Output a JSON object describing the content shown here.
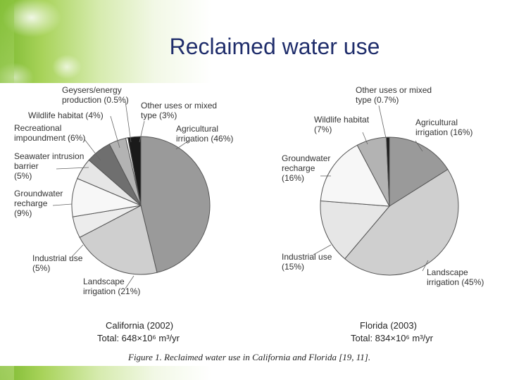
{
  "slide": {
    "title": "Reclaimed water use"
  },
  "figure_caption": "Figure 1.  Reclaimed water use in California and Florida [19, 11].",
  "chart_data": [
    {
      "type": "pie",
      "caption": "California (2002)",
      "total": "Total: 648×10⁶ m³/yr",
      "slices": [
        {
          "label": [
            "Agricultural",
            "irrigation (46%)"
          ],
          "value": 46,
          "color": "#9a9a9a"
        },
        {
          "label": [
            "Landscape",
            "irrigation (21%)"
          ],
          "value": 21,
          "color": "#cfcfcf"
        },
        {
          "label": [
            "Industrial use",
            "(5%)"
          ],
          "value": 5,
          "color": "#ececec"
        },
        {
          "label": [
            "Groundwater",
            "recharge",
            "(9%)"
          ],
          "value": 9,
          "color": "#f7f7f7"
        },
        {
          "label": [
            "Seawater intrusion",
            "barrier",
            "(5%)"
          ],
          "value": 5,
          "color": "#e6e6e6"
        },
        {
          "label": [
            "Recreational",
            "impoundment (6%)"
          ],
          "value": 6,
          "color": "#6f6f6f"
        },
        {
          "label": [
            "Wildlife habitat (4%)"
          ],
          "value": 4,
          "color": "#b3b3b3"
        },
        {
          "label": [
            "Geysers/energy",
            "production (0.5%)"
          ],
          "value": 0.5,
          "color": "#ffffff"
        },
        {
          "label": [
            "Other uses or mixed",
            "type (3%)"
          ],
          "value": 3,
          "color": "#1a1a1a"
        }
      ]
    },
    {
      "type": "pie",
      "caption": "Florida (2003)",
      "total": "Total: 834×10⁶ m³/yr",
      "slices": [
        {
          "label": [
            "Agricultural",
            "irrigation (16%)"
          ],
          "value": 16,
          "color": "#9a9a9a"
        },
        {
          "label": [
            "Landscape",
            "irrigation (45%)"
          ],
          "value": 45,
          "color": "#cfcfcf"
        },
        {
          "label": [
            "Industrial use",
            "(15%)"
          ],
          "value": 15,
          "color": "#e6e6e6"
        },
        {
          "label": [
            "Groundwater",
            "recharge",
            "(16%)"
          ],
          "value": 16,
          "color": "#f7f7f7"
        },
        {
          "label": [
            "Wildlife habitat",
            "(7%)"
          ],
          "value": 7,
          "color": "#b3b3b3"
        },
        {
          "label": [
            "Other uses or mixed",
            "type (0.7%)"
          ],
          "value": 0.7,
          "color": "#1a1a1a"
        }
      ]
    }
  ]
}
